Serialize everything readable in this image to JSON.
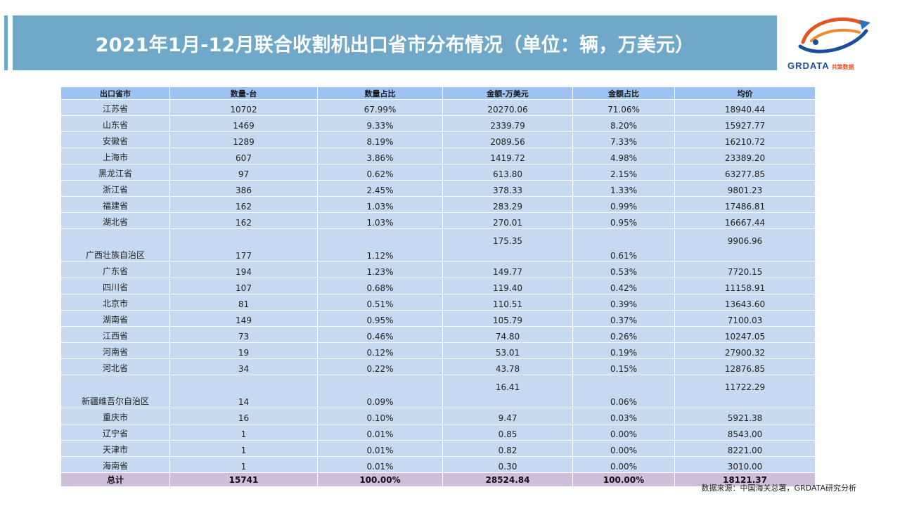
{
  "header": {
    "title": "2021年1月-12月联合收割机出口省市分布情况（单位：辆，万美元）"
  },
  "logo": {
    "text": "GRDATA",
    "subtext": "共策数据",
    "colors": {
      "blue": "#1b4f9c",
      "orange": "#e8541e",
      "accent": "#2f6fc6"
    }
  },
  "table": {
    "columns": [
      "出口省市",
      "数量-台",
      "数量占比",
      "金额-万美元",
      "金额占比",
      "均价"
    ],
    "rows": [
      [
        "江苏省",
        "10702",
        "67.99%",
        "20270.06",
        "71.06%",
        "18940.44"
      ],
      [
        "山东省",
        "1469",
        "9.33%",
        "2339.79",
        "8.20%",
        "15927.77"
      ],
      [
        "安徽省",
        "1289",
        "8.19%",
        "2089.56",
        "7.33%",
        "16210.72"
      ],
      [
        "上海市",
        "607",
        "3.86%",
        "1419.72",
        "4.98%",
        "23389.20"
      ],
      [
        "黑龙江省",
        "97",
        "0.62%",
        "613.80",
        "2.15%",
        "63277.85"
      ],
      [
        "浙江省",
        "386",
        "2.45%",
        "378.33",
        "1.33%",
        "9801.23"
      ],
      [
        "福建省",
        "162",
        "1.03%",
        "283.29",
        "0.99%",
        "17486.81"
      ],
      [
        "湖北省",
        "162",
        "1.03%",
        "270.01",
        "0.95%",
        "16667.44"
      ],
      [
        "广西壮族自治区",
        "177",
        "1.12%",
        "175.35",
        "0.61%",
        "9906.96"
      ],
      [
        "广东省",
        "194",
        "1.23%",
        "149.77",
        "0.53%",
        "7720.15"
      ],
      [
        "四川省",
        "107",
        "0.68%",
        "119.40",
        "0.42%",
        "11158.91"
      ],
      [
        "北京市",
        "81",
        "0.51%",
        "110.51",
        "0.39%",
        "13643.60"
      ],
      [
        "湖南省",
        "149",
        "0.95%",
        "105.79",
        "0.37%",
        "7100.03"
      ],
      [
        "江西省",
        "73",
        "0.46%",
        "74.80",
        "0.26%",
        "10247.05"
      ],
      [
        "河南省",
        "19",
        "0.12%",
        "53.01",
        "0.19%",
        "27900.32"
      ],
      [
        "河北省",
        "34",
        "0.22%",
        "43.78",
        "0.15%",
        "12876.85"
      ],
      [
        "新疆维吾尔自治区",
        "14",
        "0.09%",
        "16.41",
        "0.06%",
        "11722.29"
      ],
      [
        "重庆市",
        "16",
        "0.10%",
        "9.47",
        "0.03%",
        "5921.38"
      ],
      [
        "辽宁省",
        "1",
        "0.01%",
        "0.85",
        "0.00%",
        "8543.00"
      ],
      [
        "天津市",
        "1",
        "0.01%",
        "0.82",
        "0.00%",
        "8221.00"
      ],
      [
        "海南省",
        "1",
        "0.01%",
        "0.30",
        "0.00%",
        "3010.00"
      ]
    ],
    "tall_rows": [
      8,
      16
    ],
    "total": [
      "总计",
      "15741",
      "100.00%",
      "28524.84",
      "100.00%",
      "18121.37"
    ]
  },
  "footer": {
    "source": "数据来源：中国海关总署，GRDATA研究分析"
  },
  "colors": {
    "title_bar": "#6fa8c9",
    "header_row": "#9ec3f0",
    "body_row": "#c6d9f1",
    "total_row": "#cdbfdc"
  }
}
